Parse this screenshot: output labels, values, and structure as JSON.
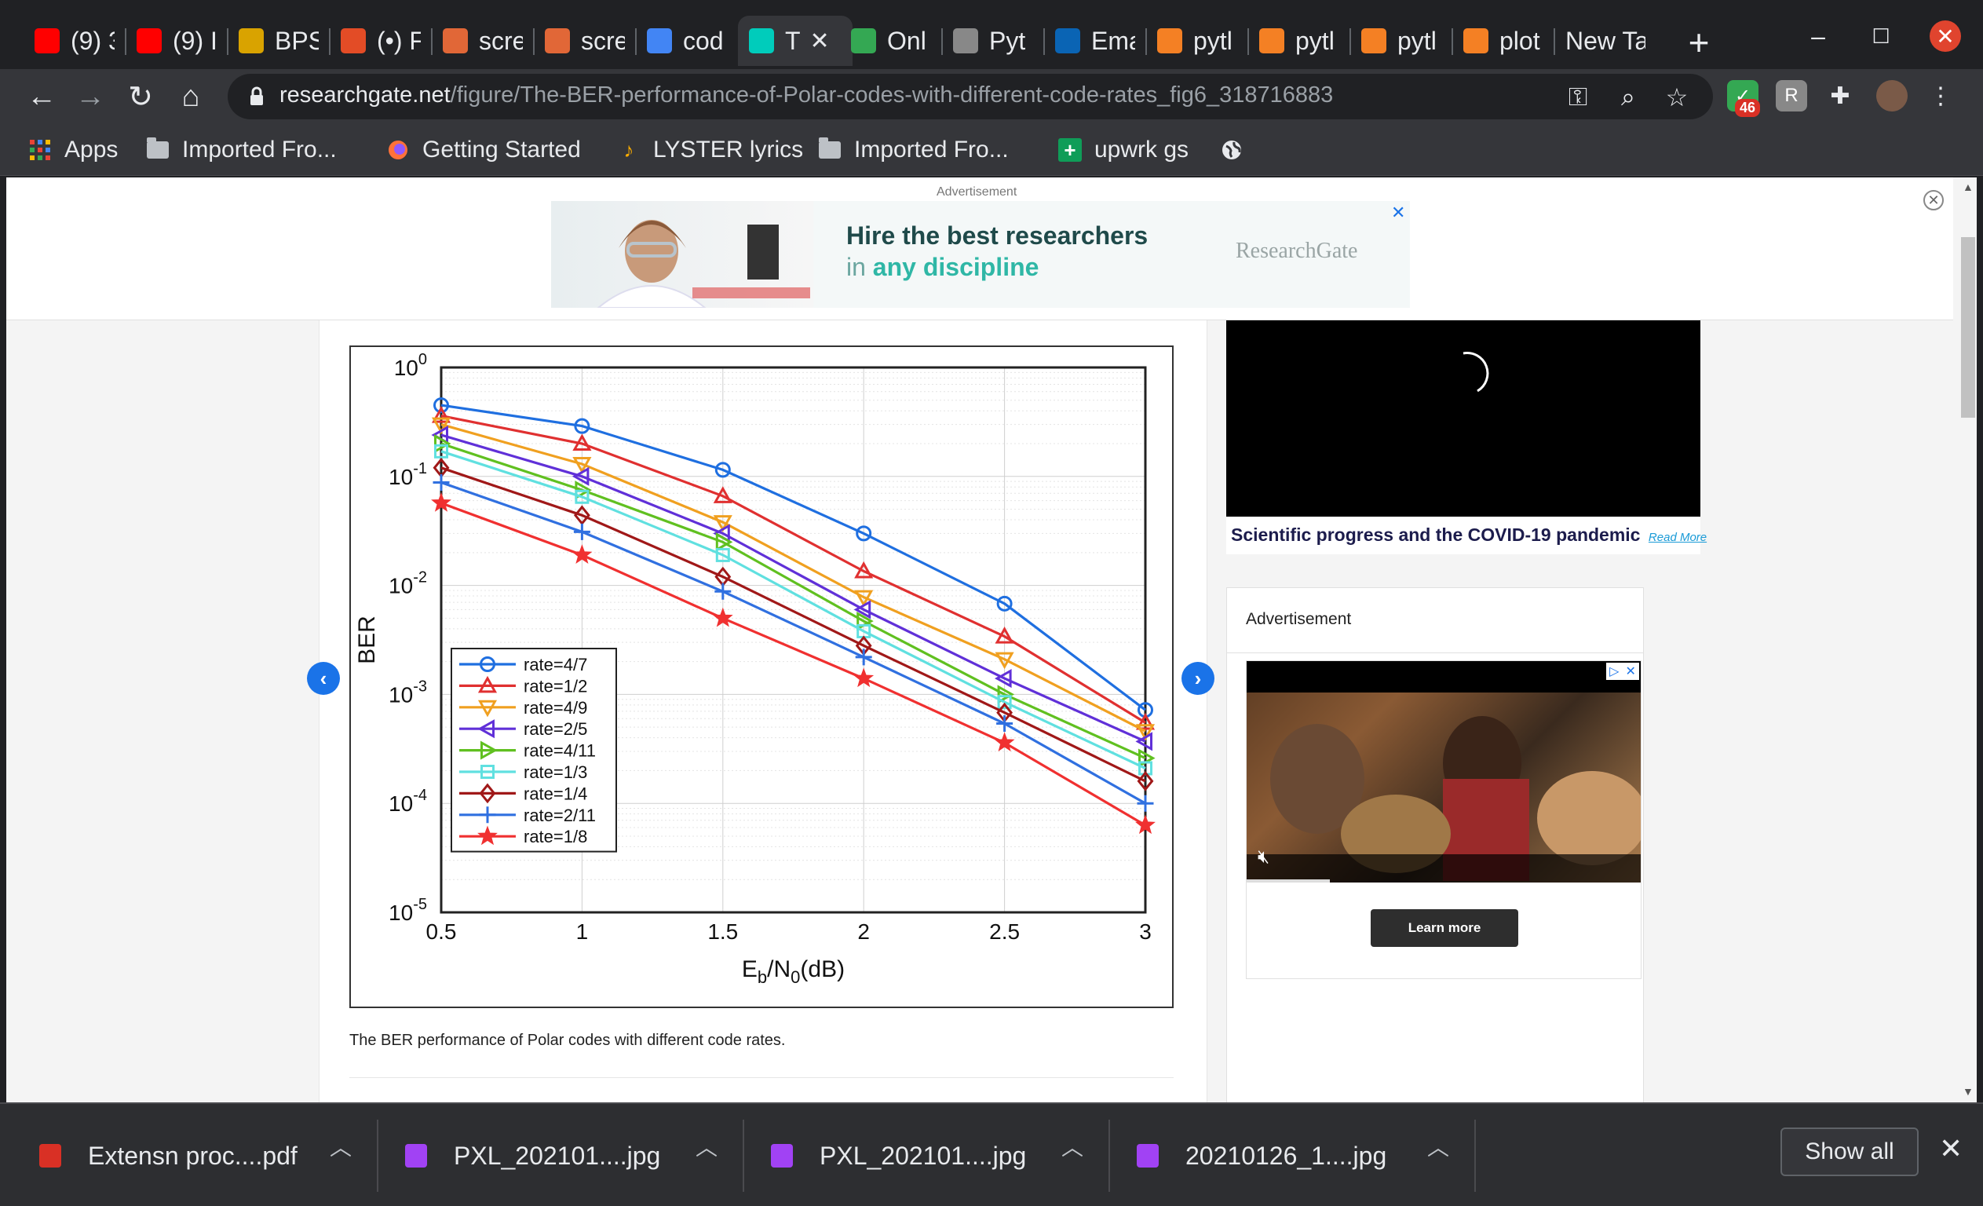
{
  "browser": {
    "tabs": [
      {
        "title": "(9) 3",
        "icon": "youtube-icon",
        "color": "#ff0000"
      },
      {
        "title": "(9) I",
        "icon": "youtube-icon",
        "color": "#ff0000"
      },
      {
        "title": "BPS",
        "icon": "bps-icon",
        "color": "#d9a300"
      },
      {
        "title": "(•) F",
        "icon": "chat-icon",
        "color": "#e34c26"
      },
      {
        "title": "scre",
        "icon": "matlab-icon",
        "color": "#e16737"
      },
      {
        "title": "scre",
        "icon": "matlab-icon",
        "color": "#e16737"
      },
      {
        "title": "cod",
        "icon": "google-icon",
        "color": "#4285f4"
      },
      {
        "title": "T",
        "icon": "researchgate-icon",
        "color": "#00ccbb"
      },
      {
        "title": "Onl",
        "icon": "code-icon",
        "color": "#34a853"
      },
      {
        "title": "Pyt",
        "icon": "python-icon",
        "color": "#888888"
      },
      {
        "title": "Ema",
        "icon": "outlook-icon",
        "color": "#0a64b4"
      },
      {
        "title": "pytl",
        "icon": "stackoverflow-icon",
        "color": "#f48024"
      },
      {
        "title": "pytl",
        "icon": "stackoverflow-icon",
        "color": "#f48024"
      },
      {
        "title": "pytl",
        "icon": "stackoverflow-icon",
        "color": "#f48024"
      },
      {
        "title": "plot",
        "icon": "stackoverflow-icon",
        "color": "#f48024"
      },
      {
        "title": "New Ta",
        "icon": "",
        "color": ""
      }
    ],
    "url_host": "researchgate.net",
    "url_path": "/figure/The-BER-performance-of-Polar-codes-with-different-code-rates_fig6_318716883",
    "extension_badge": "46",
    "bookmarks": [
      {
        "label": "Apps",
        "icon": "apps-grid-icon"
      },
      {
        "label": "Imported Fro...",
        "icon": "folder-icon"
      },
      {
        "label": "Getting Started",
        "icon": "firefox-icon"
      },
      {
        "label": "LYSTER lyrics",
        "icon": "music-note-icon"
      },
      {
        "label": "Imported Fro...",
        "icon": "folder-icon"
      },
      {
        "label": "upwrk gs",
        "icon": "sheets-plus-icon"
      }
    ]
  },
  "page": {
    "ad_top": {
      "label": "Advertisement",
      "headline": "Hire the best researchers",
      "sub_prefix": "in",
      "sub_emphasis": "any discipline",
      "brand": "ResearchGate"
    },
    "caption": "The BER performance of Polar codes with different code rates.",
    "video_caption": "Scientific progress and the COVID-19 pandemic",
    "read_more": "Read More",
    "ad_side": {
      "label": "Advertisement",
      "learn_more": "Learn more"
    }
  },
  "downloads": {
    "items": [
      {
        "name": "Extensn proc....pdf",
        "icon": "pdf-icon",
        "color": "#d93025"
      },
      {
        "name": "PXL_202101....jpg",
        "icon": "image-file-icon",
        "color": "#a142f4"
      },
      {
        "name": "PXL_202101....jpg",
        "icon": "image-file-icon",
        "color": "#a142f4"
      },
      {
        "name": "20210126_1....jpg",
        "icon": "image-file-icon",
        "color": "#a142f4"
      }
    ],
    "show_all": "Show all"
  },
  "chart_data": {
    "type": "line",
    "y_scale": "log",
    "x": [
      0.5,
      1,
      1.5,
      2,
      2.5,
      3
    ],
    "xlim": [
      0.5,
      3
    ],
    "ylim": [
      1e-05,
      1
    ],
    "x_ticks": [
      "0.5",
      "1",
      "1.5",
      "2",
      "2.5",
      "3"
    ],
    "y_ticks": [
      "10^0",
      "10^-1",
      "10^-2",
      "10^-3",
      "10^-4",
      "10^-5"
    ],
    "xlabel": "E_b/N_0(dB)",
    "ylabel": "BER",
    "grid": true,
    "legend_position": "bottom-left",
    "series": [
      {
        "name": "rate=4/7",
        "color": "#1f6fe0",
        "marker": "circle",
        "values": [
          0.45,
          0.29,
          0.115,
          0.03,
          0.0068,
          0.00072
        ]
      },
      {
        "name": "rate=1/2",
        "color": "#e03030",
        "marker": "triangle-up",
        "values": [
          0.36,
          0.2,
          0.066,
          0.0135,
          0.0034,
          0.00055
        ]
      },
      {
        "name": "rate=4/9",
        "color": "#f0a020",
        "marker": "triangle-down",
        "values": [
          0.3,
          0.13,
          0.038,
          0.0078,
          0.0021,
          0.00046
        ]
      },
      {
        "name": "rate=2/5",
        "color": "#6030d8",
        "marker": "triangle-left",
        "values": [
          0.24,
          0.1,
          0.03,
          0.006,
          0.0014,
          0.00037
        ]
      },
      {
        "name": "rate=4/11",
        "color": "#60c020",
        "marker": "triangle-right",
        "values": [
          0.2,
          0.075,
          0.025,
          0.0047,
          0.001,
          0.00026
        ]
      },
      {
        "name": "rate=1/3",
        "color": "#60e0e0",
        "marker": "square",
        "values": [
          0.17,
          0.065,
          0.019,
          0.0038,
          0.00085,
          0.00021
        ]
      },
      {
        "name": "rate=1/4",
        "color": "#a01818",
        "marker": "diamond",
        "values": [
          0.12,
          0.044,
          0.012,
          0.0028,
          0.00068,
          0.00016
        ]
      },
      {
        "name": "rate=2/11",
        "color": "#3070e0",
        "marker": "plus",
        "values": [
          0.088,
          0.031,
          0.0088,
          0.0022,
          0.00054,
          0.0001
        ]
      },
      {
        "name": "rate=1/8",
        "color": "#f03030",
        "marker": "star",
        "values": [
          0.057,
          0.019,
          0.005,
          0.0014,
          0.00036,
          6.3e-05
        ]
      }
    ]
  }
}
